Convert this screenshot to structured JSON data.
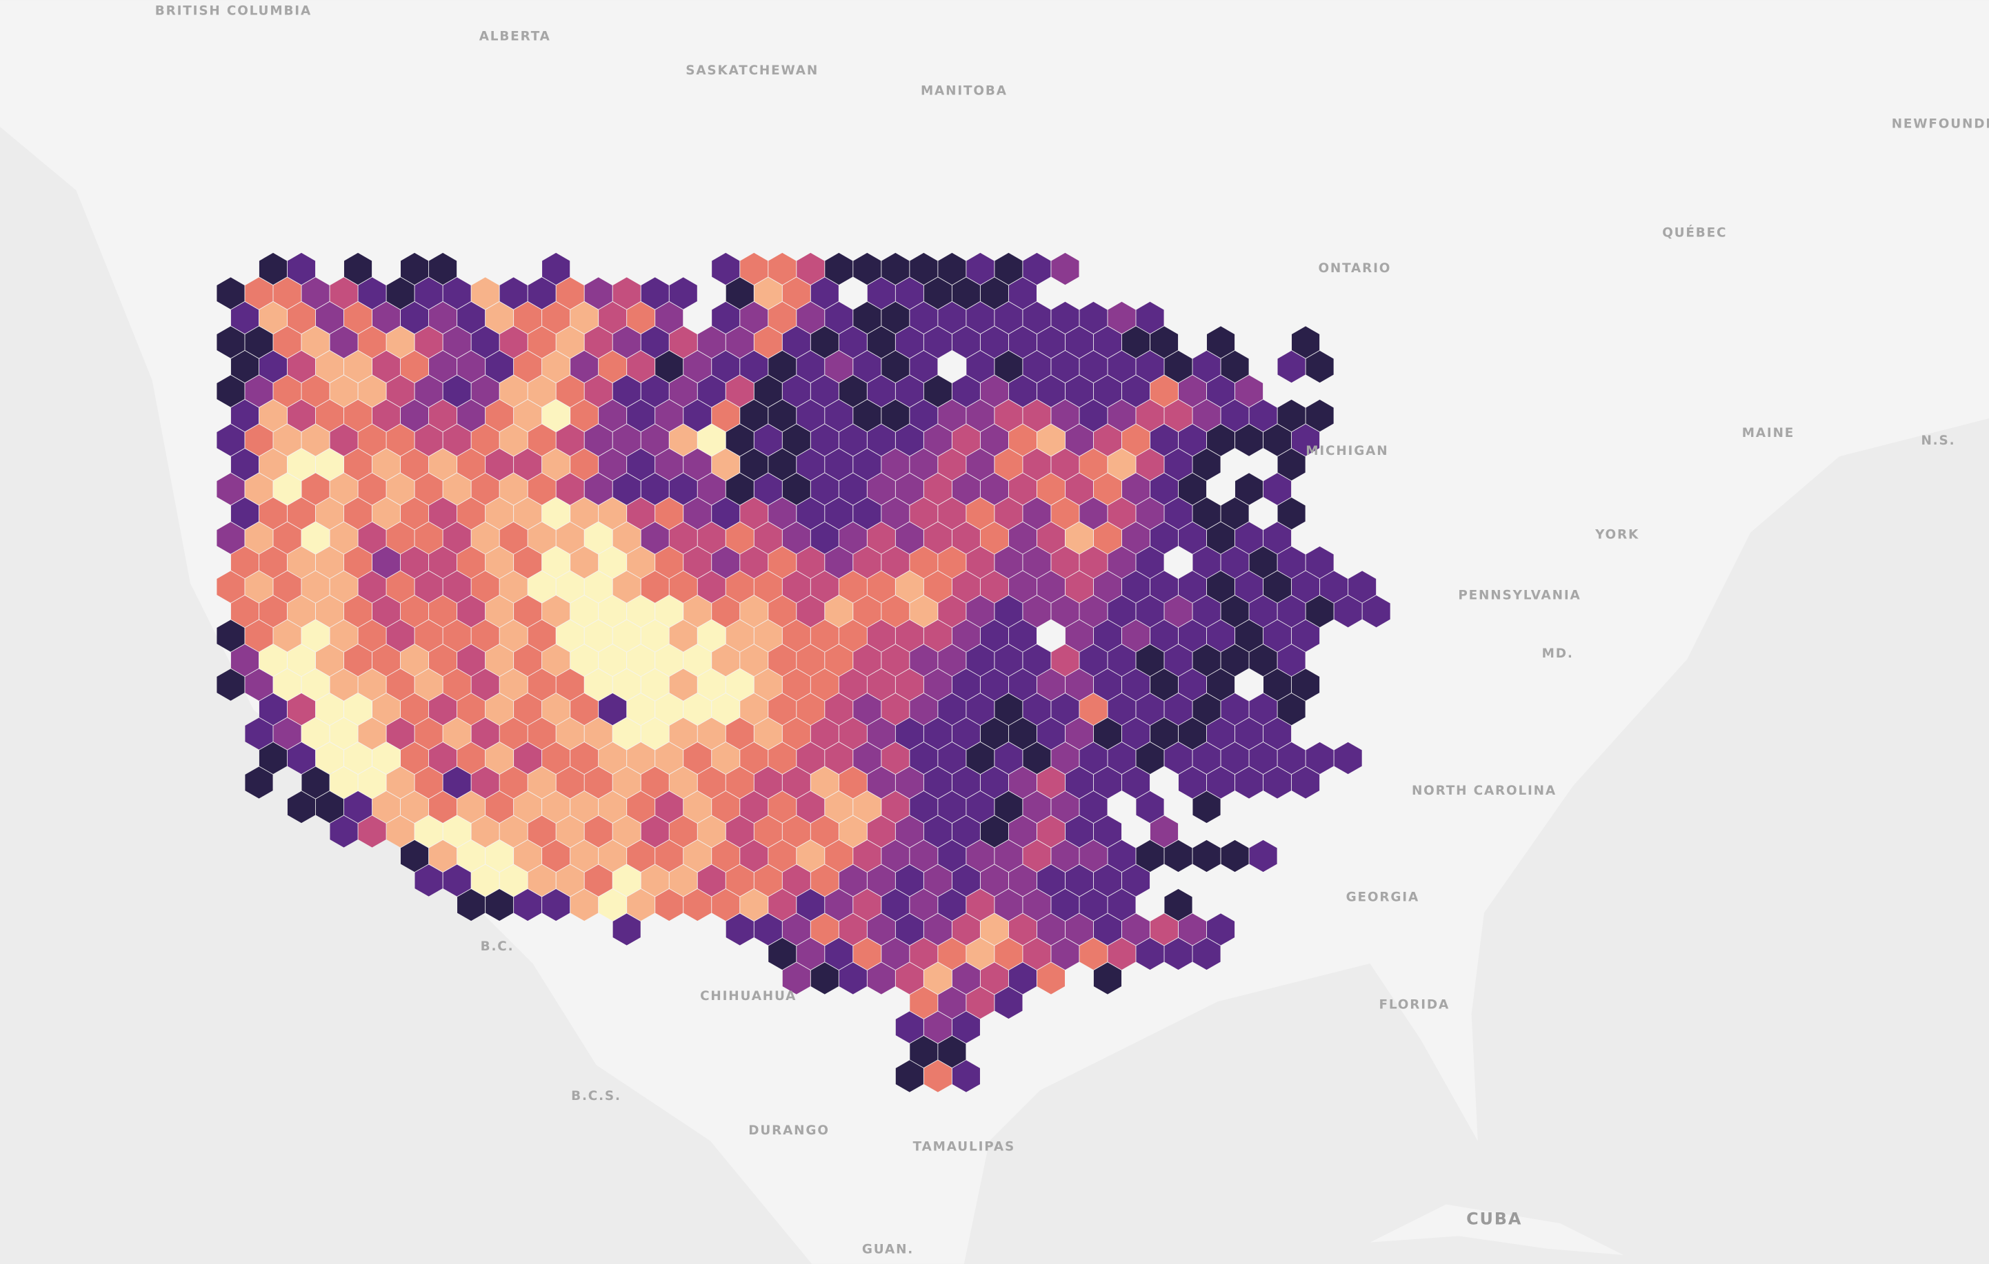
{
  "labels": [
    "BRITISH COLUMBIA",
    "ALBERTA",
    "SASKATCHEWAN",
    "MANITOBA",
    "ONTARIO",
    "QUÉBEC",
    "NEWFOUNDL",
    "MAINE",
    "N.S.",
    "MICHIGAN",
    "YORK",
    "PENNSYLVANIA",
    "MD.",
    "NORTH CAROLINA",
    "GEORGIA",
    "FLORIDA",
    "B.C.",
    "CHIHUAHUA",
    "B.C.S.",
    "DURANGO",
    "TAMAULIPAS",
    "CUBA",
    "GUAN."
  ],
  "hexbins": {
    "color_scale": [
      "#2a2049",
      "#5b2a86",
      "#8b3a8f",
      "#c44f7e",
      "#ea7b6c",
      "#f7b38a",
      "#fcf4bf"
    ],
    "rows": [
      {
        "start": 1,
        "values": [
          1,
          2,
          null,
          1,
          null,
          1,
          1,
          null,
          null,
          null,
          2,
          null,
          null,
          null,
          null,
          null,
          2,
          5,
          5,
          4,
          1,
          1,
          1,
          1,
          1,
          2,
          1,
          2,
          3
        ]
      },
      {
        "start": 0,
        "values": [
          1,
          5,
          5,
          3,
          4,
          2,
          1,
          2,
          2,
          6,
          2,
          2,
          5,
          3,
          4,
          2,
          2,
          null,
          1,
          6,
          5,
          2,
          null,
          2,
          2,
          1,
          1,
          1,
          2
        ]
      },
      {
        "start": 0,
        "values": [
          2,
          6,
          5,
          3,
          5,
          3,
          2,
          3,
          2,
          6,
          5,
          5,
          6,
          4,
          5,
          3,
          null,
          2,
          3,
          5,
          3,
          2,
          1,
          1,
          2,
          2,
          2,
          2,
          2,
          2,
          2,
          3,
          2
        ]
      },
      {
        "start": 0,
        "values": [
          1,
          1,
          5,
          6,
          3,
          5,
          6,
          4,
          3,
          2,
          4,
          5,
          6,
          4,
          3,
          2,
          4,
          3,
          3,
          5,
          2,
          1,
          2,
          1,
          2,
          2,
          2,
          2,
          2,
          2,
          2,
          2,
          1,
          1,
          null,
          1,
          null,
          null,
          1
        ]
      },
      {
        "start": 0,
        "values": [
          1,
          2,
          4,
          6,
          6,
          4,
          5,
          3,
          3,
          2,
          5,
          6,
          3,
          5,
          4,
          1,
          3,
          2,
          2,
          1,
          2,
          3,
          2,
          1,
          2,
          null,
          2,
          1,
          2,
          2,
          2,
          2,
          2,
          1,
          2,
          1,
          null,
          2,
          1
        ]
      },
      {
        "start": 0,
        "values": [
          1,
          3,
          5,
          5,
          6,
          6,
          4,
          3,
          2,
          3,
          6,
          6,
          5,
          4,
          2,
          2,
          3,
          2,
          4,
          1,
          2,
          2,
          1,
          2,
          2,
          1,
          2,
          3,
          2,
          2,
          2,
          2,
          2,
          5,
          3,
          2,
          3
        ]
      },
      {
        "start": 0,
        "values": [
          2,
          6,
          4,
          5,
          5,
          4,
          3,
          4,
          3,
          5,
          6,
          7,
          5,
          3,
          2,
          3,
          2,
          5,
          1,
          1,
          2,
          2,
          1,
          1,
          2,
          3,
          3,
          4,
          4,
          3,
          2,
          3,
          4,
          4,
          3,
          2,
          2,
          1,
          1
        ]
      },
      {
        "start": 0,
        "values": [
          2,
          5,
          6,
          6,
          4,
          5,
          5,
          4,
          4,
          5,
          6,
          5,
          4,
          3,
          3,
          3,
          6,
          7,
          1,
          2,
          1,
          2,
          2,
          2,
          2,
          3,
          4,
          3,
          5,
          6,
          3,
          4,
          5,
          2,
          2,
          1,
          1,
          1,
          2
        ]
      },
      {
        "start": 0,
        "values": [
          2,
          6,
          7,
          7,
          5,
          6,
          5,
          6,
          5,
          4,
          4,
          6,
          5,
          3,
          2,
          3,
          3,
          6,
          1,
          1,
          2,
          2,
          2,
          3,
          3,
          4,
          3,
          5,
          4,
          4,
          5,
          6,
          4,
          2,
          1,
          null,
          null,
          1
        ]
      },
      {
        "start": 0,
        "values": [
          3,
          6,
          7,
          5,
          6,
          5,
          6,
          5,
          6,
          5,
          6,
          5,
          4,
          3,
          2,
          2,
          2,
          3,
          1,
          2,
          1,
          2,
          2,
          3,
          3,
          4,
          3,
          3,
          4,
          5,
          4,
          5,
          3,
          2,
          1,
          null,
          1,
          2
        ]
      },
      {
        "start": 0,
        "values": [
          2,
          5,
          5,
          6,
          5,
          6,
          5,
          4,
          5,
          6,
          6,
          7,
          6,
          6,
          4,
          5,
          3,
          2,
          4,
          3,
          2,
          2,
          2,
          3,
          4,
          4,
          5,
          4,
          3,
          5,
          3,
          4,
          3,
          2,
          1,
          1,
          null,
          1
        ]
      },
      {
        "start": 0,
        "values": [
          3,
          6,
          5,
          7,
          6,
          4,
          5,
          5,
          4,
          6,
          5,
          6,
          6,
          7,
          6,
          3,
          4,
          4,
          5,
          4,
          3,
          2,
          3,
          4,
          3,
          4,
          4,
          5,
          3,
          4,
          6,
          5,
          3,
          2,
          2,
          1,
          2,
          2
        ]
      },
      {
        "start": 0,
        "values": [
          5,
          5,
          6,
          6,
          5,
          3,
          4,
          4,
          5,
          6,
          5,
          7,
          6,
          7,
          6,
          5,
          4,
          3,
          4,
          5,
          4,
          3,
          4,
          4,
          5,
          5,
          4,
          3,
          3,
          4,
          4,
          3,
          2,
          null,
          2,
          2,
          1,
          2,
          2
        ]
      },
      {
        "start": 0,
        "values": [
          5,
          6,
          5,
          6,
          6,
          4,
          5,
          4,
          4,
          5,
          6,
          7,
          7,
          7,
          6,
          5,
          5,
          4,
          5,
          5,
          4,
          4,
          5,
          5,
          6,
          5,
          4,
          4,
          3,
          3,
          4,
          3,
          2,
          2,
          2,
          1,
          2,
          1,
          2,
          2,
          2
        ]
      },
      {
        "start": 0,
        "values": [
          5,
          5,
          6,
          6,
          5,
          4,
          5,
          5,
          4,
          6,
          5,
          6,
          7,
          7,
          7,
          7,
          6,
          5,
          6,
          5,
          4,
          6,
          5,
          5,
          6,
          4,
          3,
          2,
          3,
          3,
          3,
          2,
          2,
          3,
          2,
          1,
          2,
          2,
          1,
          2,
          2
        ]
      },
      {
        "start": 0,
        "values": [
          1,
          5,
          6,
          7,
          6,
          5,
          4,
          5,
          5,
          5,
          6,
          5,
          7,
          7,
          7,
          7,
          6,
          7,
          6,
          6,
          5,
          5,
          5,
          4,
          4,
          4,
          3,
          2,
          2,
          null,
          3,
          2,
          3,
          2,
          2,
          2,
          1,
          2,
          2
        ]
      },
      {
        "start": 0,
        "values": [
          3,
          7,
          7,
          6,
          5,
          5,
          6,
          5,
          4,
          6,
          5,
          6,
          7,
          7,
          7,
          7,
          7,
          6,
          6,
          5,
          5,
          5,
          4,
          4,
          3,
          3,
          2,
          2,
          2,
          4,
          2,
          2,
          1,
          2,
          1,
          1,
          1,
          2
        ]
      },
      {
        "start": 0,
        "values": [
          1,
          3,
          7,
          7,
          6,
          6,
          5,
          6,
          5,
          4,
          6,
          5,
          5,
          7,
          7,
          7,
          6,
          7,
          7,
          6,
          5,
          5,
          4,
          4,
          4,
          3,
          2,
          2,
          2,
          3,
          3,
          2,
          2,
          1,
          2,
          1,
          null,
          1,
          1
        ]
      },
      {
        "start": 1,
        "values": [
          2,
          4,
          7,
          7,
          6,
          5,
          4,
          5,
          6,
          5,
          6,
          5,
          2,
          7,
          7,
          7,
          7,
          6,
          5,
          5,
          4,
          3,
          4,
          3,
          2,
          2,
          1,
          2,
          2,
          5,
          2,
          2,
          2,
          1,
          2,
          2,
          1
        ]
      },
      {
        "start": 1,
        "values": [
          2,
          3,
          7,
          7,
          6,
          4,
          5,
          6,
          4,
          5,
          5,
          6,
          6,
          7,
          7,
          6,
          6,
          5,
          6,
          5,
          4,
          4,
          3,
          2,
          2,
          2,
          1,
          1,
          2,
          3,
          1,
          2,
          1,
          1,
          2,
          2,
          2
        ]
      },
      {
        "start": 1,
        "values": [
          1,
          2,
          7,
          7,
          7,
          5,
          4,
          5,
          6,
          4,
          5,
          5,
          6,
          6,
          6,
          5,
          6,
          5,
          5,
          4,
          4,
          3,
          4,
          2,
          2,
          1,
          2,
          1,
          3,
          2,
          2,
          1,
          2,
          2,
          2,
          2,
          2,
          2,
          2
        ]
      },
      {
        "start": 1,
        "values": [
          1,
          null,
          1,
          7,
          7,
          6,
          5,
          2,
          4,
          5,
          6,
          5,
          5,
          6,
          5,
          6,
          5,
          5,
          4,
          4,
          6,
          5,
          3,
          3,
          2,
          2,
          2,
          3,
          4,
          2,
          2,
          2,
          null,
          2,
          2,
          2,
          2,
          2
        ]
      },
      {
        "start": 2,
        "values": [
          1,
          1,
          2,
          6,
          6,
          5,
          6,
          5,
          6,
          6,
          6,
          6,
          5,
          4,
          6,
          5,
          4,
          5,
          4,
          6,
          6,
          4,
          2,
          2,
          2,
          1,
          3,
          3,
          2,
          null,
          2,
          null,
          1
        ]
      },
      {
        "start": 4,
        "values": [
          2,
          4,
          6,
          7,
          7,
          6,
          6,
          5,
          6,
          5,
          6,
          4,
          5,
          6,
          4,
          5,
          5,
          5,
          6,
          4,
          3,
          2,
          2,
          1,
          3,
          4,
          2,
          2,
          null,
          3
        ]
      },
      {
        "start": 6,
        "values": [
          1,
          6,
          7,
          7,
          6,
          5,
          6,
          6,
          5,
          5,
          6,
          5,
          4,
          5,
          6,
          5,
          4,
          3,
          3,
          2,
          3,
          3,
          4,
          3,
          3,
          2,
          1,
          1,
          1,
          1,
          2
        ]
      },
      {
        "start": 7,
        "values": [
          2,
          2,
          7,
          7,
          6,
          6,
          5,
          7,
          6,
          6,
          4,
          5,
          5,
          4,
          5,
          3,
          3,
          2,
          3,
          2,
          3,
          3,
          2,
          2,
          2,
          2
        ]
      },
      {
        "start": 8,
        "values": [
          1,
          1,
          2,
          2,
          6,
          7,
          6,
          5,
          5,
          5,
          6,
          4,
          2,
          3,
          4,
          2,
          3,
          2,
          4,
          3,
          3,
          2,
          2,
          2,
          null,
          1
        ]
      },
      {
        "start": 14,
        "values": [
          2,
          null,
          null,
          null,
          2,
          2,
          3,
          5,
          4,
          3,
          2,
          3,
          4,
          6,
          4,
          3,
          3,
          2,
          3,
          4,
          3,
          2
        ]
      },
      {
        "start": 19,
        "values": [
          1,
          3,
          2,
          5,
          3,
          4,
          5,
          6,
          5,
          4,
          3,
          5,
          4,
          2,
          2,
          2
        ]
      },
      {
        "start": 20,
        "values": [
          3,
          1,
          2,
          3,
          4,
          6,
          3,
          4,
          2,
          5,
          null,
          1
        ]
      },
      {
        "start": 24,
        "values": [
          5,
          3,
          4,
          2
        ]
      },
      {
        "start": 24,
        "values": [
          2,
          3,
          2
        ]
      },
      {
        "start": 24,
        "values": [
          1,
          1
        ]
      },
      {
        "start": 24,
        "values": [
          1,
          5,
          2
        ]
      }
    ]
  }
}
